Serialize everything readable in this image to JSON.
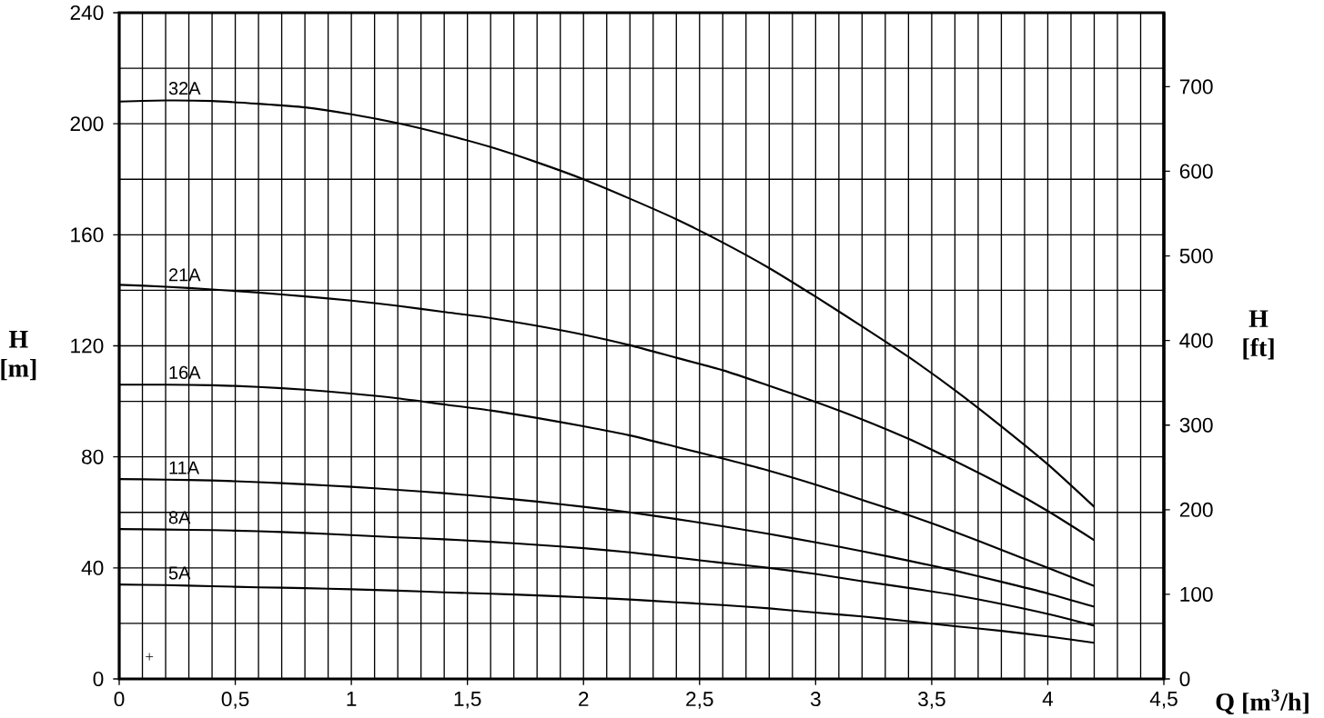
{
  "chart_data": {
    "type": "line",
    "xlabel": "Q [m$^{3}$/h]",
    "ylabel": "H [m]",
    "y2label": "H [ft]",
    "x": [
      0,
      0.2,
      0.4,
      0.6,
      0.8,
      1,
      1.2,
      1.4,
      1.6,
      1.8,
      2,
      2.2,
      2.4,
      2.6,
      2.8,
      3,
      3.2,
      3.4,
      3.6,
      3.8,
      4,
      4.2
    ],
    "series": [
      {
        "name": "32A",
        "color": "#000000",
        "values": [
          208,
          208.4,
          208.2,
          207.2,
          205.9,
          203.4,
          200.2,
          196.2,
          191.6,
          186.1,
          180,
          173,
          165.6,
          157.2,
          148,
          137.7,
          127,
          116,
          104,
          91,
          77.3,
          62
        ]
      },
      {
        "name": "21A",
        "color": "#000000",
        "values": [
          142,
          141.3,
          140.3,
          139.2,
          137.8,
          136.3,
          134.4,
          132.2,
          130,
          127.2,
          124,
          120.2,
          115.7,
          111.2,
          105.6,
          99.8,
          93.5,
          86.5,
          78.5,
          70,
          60.5,
          50
        ]
      },
      {
        "name": "16A",
        "color": "#000000",
        "values": [
          106,
          106,
          105.8,
          105.2,
          104.2,
          102.8,
          101.1,
          98.9,
          96.7,
          94,
          91,
          87.7,
          83.6,
          79.4,
          75,
          70,
          64.5,
          59,
          53,
          46.5,
          40,
          33.5
        ]
      },
      {
        "name": "11A",
        "color": "#000000",
        "values": [
          72,
          71.8,
          71.5,
          70.9,
          70.1,
          69.2,
          68.1,
          66.9,
          65.5,
          63.9,
          62,
          60,
          57.6,
          55,
          52.2,
          49.2,
          46,
          42.6,
          39,
          35,
          30.8,
          26
        ]
      },
      {
        "name": "8A",
        "color": "#000000",
        "values": [
          54,
          53.8,
          53.6,
          53.2,
          52.6,
          51.8,
          51,
          50.3,
          49.4,
          48.3,
          47.1,
          45.6,
          43.7,
          41.8,
          40,
          37.8,
          35.2,
          32.8,
          30.2,
          27,
          23.4,
          19.2
        ]
      },
      {
        "name": "5A",
        "color": "#000000",
        "values": [
          34,
          33.8,
          33.4,
          33,
          32.7,
          32.3,
          31.8,
          31.2,
          30.7,
          30.1,
          29.4,
          28.6,
          27.6,
          26.6,
          25.4,
          23.9,
          22.5,
          20.8,
          19,
          17.3,
          15.3,
          13
        ]
      },
      {
        "type": "scatter",
        "color": "#000000",
        "marker": "cross",
        "x": [
          0.13
        ],
        "values": [
          8
        ]
      }
    ],
    "xlim": [
      0,
      4.5
    ],
    "xticks": [
      0,
      {
        "value": 0.1,
        "label": null
      },
      {
        "value": 0.2,
        "label": null
      },
      {
        "value": 0.3,
        "label": null
      },
      {
        "value": 0.4,
        "label": null
      },
      {
        "value": 0.5,
        "label": "0,5"
      },
      {
        "value": 0.6,
        "label": null
      },
      {
        "value": 0.7,
        "label": null
      },
      {
        "value": 0.8,
        "label": null
      },
      {
        "value": 0.9,
        "label": null
      },
      1,
      {
        "value": 1.1,
        "label": null
      },
      {
        "value": 1.2,
        "label": null
      },
      {
        "value": 1.3,
        "label": null
      },
      {
        "value": 1.4,
        "label": null
      },
      {
        "value": 1.5,
        "label": "1,5"
      },
      {
        "value": 1.6,
        "label": null
      },
      {
        "value": 1.7,
        "label": null
      },
      {
        "value": 1.8,
        "label": null
      },
      {
        "value": 1.9,
        "label": null
      },
      2,
      {
        "value": 2.1,
        "label": null
      },
      {
        "value": 2.2,
        "label": null
      },
      {
        "value": 2.3,
        "label": null
      },
      {
        "value": 2.4,
        "label": null
      },
      {
        "value": 2.5,
        "label": "2,5"
      },
      {
        "value": 2.6,
        "label": null
      },
      {
        "value": 2.7,
        "label": null
      },
      {
        "value": 2.8,
        "label": null
      },
      {
        "value": 2.9,
        "label": null
      },
      3,
      {
        "value": 3.1,
        "label": null
      },
      {
        "value": 3.2,
        "label": null
      },
      {
        "value": 3.3,
        "label": null
      },
      {
        "value": 3.4,
        "label": null
      },
      {
        "value": 3.5,
        "label": "3,5"
      },
      {
        "value": 3.6,
        "label": null
      },
      {
        "value": 3.7,
        "label": null
      },
      {
        "value": 3.8,
        "label": null
      },
      {
        "value": 3.9,
        "label": null
      },
      4,
      {
        "value": 4.1,
        "label": null
      },
      {
        "value": 4.2,
        "label": null
      },
      {
        "value": 4.3,
        "label": null
      },
      {
        "value": 4.4,
        "label": null
      },
      {
        "value": 4.5,
        "label": "4,5"
      }
    ],
    "ylim": [
      0,
      240
    ],
    "yticks": [
      0,
      {
        "value": 20,
        "label": null
      },
      40,
      {
        "value": 60,
        "label": null
      },
      80,
      {
        "value": 100,
        "label": null
      },
      120,
      {
        "value": 140,
        "label": null
      },
      160,
      {
        "value": 180,
        "label": null
      },
      200,
      {
        "value": 220,
        "label": null
      },
      240
    ],
    "y2lim": [
      0,
      787.4
    ],
    "y2ticks": [
      0,
      100,
      200,
      300,
      400,
      500,
      600,
      700
    ],
    "grid": true,
    "line_style": "solid",
    "marker": "none"
  }
}
